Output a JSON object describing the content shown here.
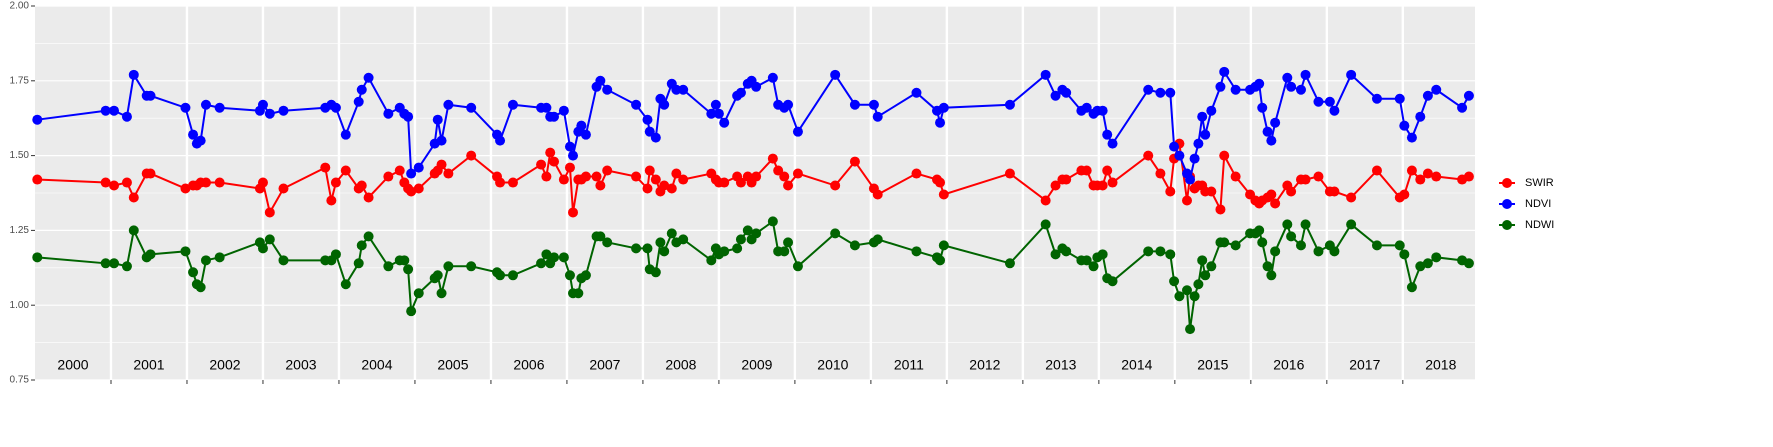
{
  "chart_data": {
    "type": "line",
    "x": [
      2000.03,
      2000.93,
      2001.04,
      2001.21,
      2001.3,
      2001.47,
      2001.52,
      2001.98,
      2002.08,
      2002.13,
      2002.18,
      2002.25,
      2002.43,
      2002.96,
      2003.0,
      2003.09,
      2003.27,
      2003.82,
      2003.9,
      2003.96,
      2004.09,
      2004.26,
      2004.3,
      2004.39,
      2004.65,
      2004.8,
      2004.86,
      2004.91,
      2004.95,
      2005.05,
      2005.26,
      2005.3,
      2005.35,
      2005.44,
      2005.74,
      2006.08,
      2006.12,
      2006.29,
      2006.66,
      2006.73,
      2006.78,
      2006.83,
      2006.96,
      2007.04,
      2007.08,
      2007.15,
      2007.19,
      2007.25,
      2007.39,
      2007.44,
      2007.53,
      2007.91,
      2008.06,
      2008.09,
      2008.17,
      2008.23,
      2008.28,
      2008.38,
      2008.44,
      2008.53,
      2008.9,
      2008.96,
      2009.0,
      2009.07,
      2009.24,
      2009.29,
      2009.38,
      2009.43,
      2009.49,
      2009.71,
      2009.78,
      2009.86,
      2009.91,
      2010.04,
      2010.53,
      2010.79,
      2011.04,
      2011.09,
      2011.6,
      2011.87,
      2011.91,
      2011.96,
      2012.83,
      2013.3,
      2013.43,
      2013.52,
      2013.57,
      2013.77,
      2013.84,
      2013.93,
      2013.98,
      2014.05,
      2014.11,
      2014.18,
      2014.65,
      2014.81,
      2014.94,
      2014.99,
      2015.06,
      2015.16,
      2015.2,
      2015.26,
      2015.31,
      2015.36,
      2015.4,
      2015.48,
      2015.6,
      2015.65,
      2015.8,
      2015.99,
      2016.06,
      2016.11,
      2016.15,
      2016.22,
      2016.27,
      2016.32,
      2016.48,
      2016.53,
      2016.66,
      2016.72,
      2016.89,
      2017.04,
      2017.1,
      2017.32,
      2017.66,
      2017.96,
      2018.02,
      2018.12,
      2018.23,
      2018.33,
      2018.44,
      2018.78,
      2018.87
    ],
    "series": [
      {
        "name": "SWIR",
        "color": "#ff0000",
        "values": [
          1.42,
          1.41,
          1.4,
          1.41,
          1.36,
          1.44,
          1.44,
          1.39,
          1.4,
          1.4,
          1.41,
          1.41,
          1.41,
          1.39,
          1.41,
          1.31,
          1.39,
          1.46,
          1.35,
          1.41,
          1.45,
          1.39,
          1.4,
          1.36,
          1.43,
          1.45,
          1.41,
          1.39,
          1.38,
          1.39,
          1.44,
          1.45,
          1.47,
          1.44,
          1.5,
          1.43,
          1.41,
          1.41,
          1.47,
          1.43,
          1.51,
          1.48,
          1.42,
          1.46,
          1.31,
          1.42,
          1.42,
          1.43,
          1.43,
          1.4,
          1.45,
          1.43,
          1.39,
          1.45,
          1.42,
          1.38,
          1.4,
          1.39,
          1.44,
          1.42,
          1.44,
          1.42,
          1.41,
          1.41,
          1.43,
          1.41,
          1.43,
          1.41,
          1.43,
          1.49,
          1.45,
          1.43,
          1.4,
          1.44,
          1.4,
          1.48,
          1.39,
          1.37,
          1.44,
          1.42,
          1.41,
          1.37,
          1.44,
          1.35,
          1.4,
          1.42,
          1.42,
          1.45,
          1.45,
          1.4,
          1.4,
          1.4,
          1.45,
          1.41,
          1.5,
          1.44,
          1.38,
          1.49,
          1.54,
          1.35,
          1.43,
          1.39,
          1.4,
          1.4,
          1.38,
          1.38,
          1.32,
          1.5,
          1.43,
          1.37,
          1.35,
          1.34,
          1.35,
          1.36,
          1.37,
          1.34,
          1.4,
          1.38,
          1.42,
          1.42,
          1.43,
          1.38,
          1.38,
          1.36,
          1.45,
          1.36,
          1.37,
          1.45,
          1.42,
          1.44,
          1.43,
          1.42,
          1.43
        ]
      },
      {
        "name": "NDVI",
        "color": "#0000ff",
        "values": [
          1.62,
          1.65,
          1.65,
          1.63,
          1.77,
          1.7,
          1.7,
          1.66,
          1.57,
          1.54,
          1.55,
          1.67,
          1.66,
          1.65,
          1.67,
          1.64,
          1.65,
          1.66,
          1.67,
          1.66,
          1.57,
          1.68,
          1.72,
          1.76,
          1.64,
          1.66,
          1.64,
          1.63,
          1.44,
          1.46,
          1.54,
          1.62,
          1.55,
          1.67,
          1.66,
          1.57,
          1.55,
          1.67,
          1.66,
          1.66,
          1.63,
          1.63,
          1.65,
          1.53,
          1.5,
          1.58,
          1.6,
          1.57,
          1.73,
          1.75,
          1.72,
          1.67,
          1.62,
          1.58,
          1.56,
          1.69,
          1.67,
          1.74,
          1.72,
          1.72,
          1.64,
          1.67,
          1.64,
          1.61,
          1.7,
          1.71,
          1.74,
          1.75,
          1.73,
          1.76,
          1.67,
          1.66,
          1.67,
          1.58,
          1.77,
          1.67,
          1.67,
          1.63,
          1.71,
          1.65,
          1.61,
          1.66,
          1.67,
          1.77,
          1.7,
          1.72,
          1.71,
          1.65,
          1.66,
          1.64,
          1.65,
          1.65,
          1.57,
          1.54,
          1.72,
          1.71,
          1.71,
          1.53,
          1.5,
          1.44,
          1.42,
          1.49,
          1.54,
          1.63,
          1.57,
          1.65,
          1.73,
          1.78,
          1.72,
          1.72,
          1.73,
          1.74,
          1.66,
          1.58,
          1.55,
          1.61,
          1.76,
          1.73,
          1.72,
          1.77,
          1.68,
          1.68,
          1.65,
          1.77,
          1.69,
          1.69,
          1.6,
          1.56,
          1.63,
          1.7,
          1.72,
          1.66,
          1.7
        ]
      },
      {
        "name": "NDWI",
        "color": "#006400",
        "values": [
          1.16,
          1.14,
          1.14,
          1.13,
          1.25,
          1.16,
          1.17,
          1.18,
          1.11,
          1.07,
          1.06,
          1.15,
          1.16,
          1.21,
          1.19,
          1.22,
          1.15,
          1.15,
          1.15,
          1.17,
          1.07,
          1.14,
          1.2,
          1.23,
          1.13,
          1.15,
          1.15,
          1.12,
          0.98,
          1.04,
          1.09,
          1.1,
          1.04,
          1.13,
          1.13,
          1.11,
          1.1,
          1.1,
          1.14,
          1.17,
          1.14,
          1.16,
          1.16,
          1.1,
          1.04,
          1.04,
          1.09,
          1.1,
          1.23,
          1.23,
          1.21,
          1.19,
          1.19,
          1.12,
          1.11,
          1.21,
          1.18,
          1.24,
          1.21,
          1.22,
          1.15,
          1.19,
          1.17,
          1.18,
          1.19,
          1.22,
          1.25,
          1.22,
          1.24,
          1.28,
          1.18,
          1.18,
          1.21,
          1.13,
          1.24,
          1.2,
          1.21,
          1.22,
          1.18,
          1.16,
          1.15,
          1.2,
          1.14,
          1.27,
          1.17,
          1.19,
          1.18,
          1.15,
          1.15,
          1.13,
          1.16,
          1.17,
          1.09,
          1.08,
          1.18,
          1.18,
          1.17,
          1.08,
          1.03,
          1.05,
          0.92,
          1.03,
          1.07,
          1.15,
          1.1,
          1.13,
          1.21,
          1.21,
          1.2,
          1.24,
          1.24,
          1.25,
          1.21,
          1.13,
          1.1,
          1.18,
          1.27,
          1.23,
          1.2,
          1.27,
          1.18,
          1.2,
          1.18,
          1.27,
          1.2,
          1.2,
          1.17,
          1.06,
          1.13,
          1.14,
          1.16,
          1.15,
          1.14
        ]
      }
    ],
    "xlim": [
      2000,
      2018.95
    ],
    "xticks": [
      2001,
      2002,
      2003,
      2004,
      2005,
      2006,
      2007,
      2008,
      2009,
      2010,
      2011,
      2012,
      2013,
      2014,
      2015,
      2016,
      2017,
      2018
    ],
    "year_labels": [
      "2000",
      "2001",
      "2002",
      "2003",
      "2004",
      "2005",
      "2006",
      "2007",
      "2008",
      "2009",
      "2010",
      "2011",
      "2012",
      "2013",
      "2014",
      "2015",
      "2016",
      "2017",
      "2018"
    ],
    "ylim": [
      0.75,
      2.0
    ],
    "yticks": [
      {
        "value": 0.75,
        "label": "0.75"
      },
      {
        "value": 1.0,
        "label": "1.00"
      },
      {
        "value": 1.25,
        "label": "1.25"
      },
      {
        "value": 1.5,
        "label": "1.50"
      },
      {
        "value": 1.75,
        "label": "1.75"
      },
      {
        "value": 2.0,
        "label": "2.00"
      }
    ],
    "grid": true,
    "legend": "right"
  }
}
